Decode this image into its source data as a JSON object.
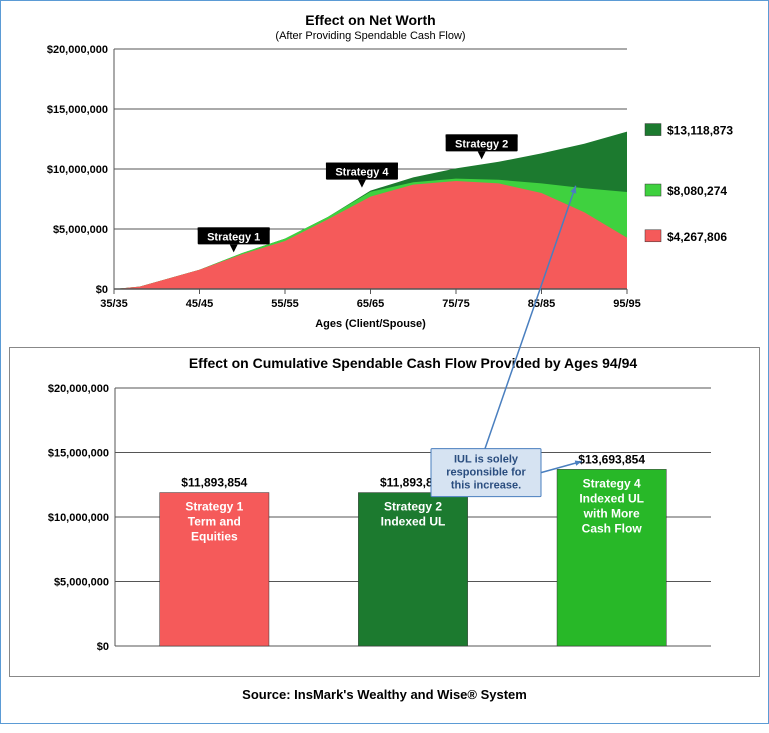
{
  "footer": "Source: InsMark's Wealthy and Wise® System",
  "outer_border_color": "#5b9bd5",
  "top_chart": {
    "type": "area",
    "title": "Effect on Net Worth",
    "subtitle": "(After Providing Spendable Cash Flow)",
    "xlabel": "Ages (Client/Spouse)",
    "x_ticks": [
      "35/35",
      "45/45",
      "55/55",
      "65/65",
      "75/75",
      "85/85",
      "95/95"
    ],
    "y_ticks": [
      "$0",
      "$5,000,000",
      "$10,000,000",
      "$15,000,000",
      "$20,000,000"
    ],
    "ylim": [
      0,
      20000000
    ],
    "xlim": [
      35,
      95
    ],
    "grid_color": "#555555",
    "background": "#ffffff",
    "axis_fontsize": 11,
    "series": [
      {
        "name": "Strategy 2",
        "color": "#1c7a2f",
        "points": [
          [
            35,
            0
          ],
          [
            38,
            200000
          ],
          [
            45,
            1600000
          ],
          [
            50,
            3000000
          ],
          [
            55,
            4200000
          ],
          [
            60,
            6000000
          ],
          [
            65,
            8200000
          ],
          [
            70,
            9300000
          ],
          [
            75,
            10050000
          ],
          [
            80,
            10600000
          ],
          [
            85,
            11300000
          ],
          [
            90,
            12100000
          ],
          [
            95,
            13118873
          ]
        ],
        "legend_value": "$13,118,873",
        "tag": {
          "label": "Strategy 2",
          "x": 78,
          "y": 10800000
        }
      },
      {
        "name": "Strategy 4",
        "color": "#3fd13f",
        "points": [
          [
            35,
            0
          ],
          [
            38,
            200000
          ],
          [
            45,
            1600000
          ],
          [
            50,
            3000000
          ],
          [
            55,
            4200000
          ],
          [
            60,
            6000000
          ],
          [
            65,
            8100000
          ],
          [
            70,
            8900000
          ],
          [
            75,
            9200000
          ],
          [
            80,
            9100000
          ],
          [
            85,
            8800000
          ],
          [
            90,
            8400000
          ],
          [
            95,
            8080274
          ]
        ],
        "legend_value": "$8,080,274",
        "tag": {
          "label": "Strategy 4",
          "x": 64,
          "y": 8450000
        }
      },
      {
        "name": "Strategy 1",
        "color": "#f55a5a",
        "points": [
          [
            35,
            0
          ],
          [
            38,
            200000
          ],
          [
            45,
            1600000
          ],
          [
            50,
            2900000
          ],
          [
            55,
            4000000
          ],
          [
            60,
            5800000
          ],
          [
            65,
            7700000
          ],
          [
            70,
            8700000
          ],
          [
            75,
            9000000
          ],
          [
            80,
            8800000
          ],
          [
            85,
            8000000
          ],
          [
            90,
            6400000
          ],
          [
            95,
            4267806
          ]
        ],
        "legend_value": "$4,267,806",
        "tag": {
          "label": "Strategy 1",
          "x": 49,
          "y": 3050000
        }
      }
    ],
    "arrow_to_strategy4": {
      "from_bottom": true
    }
  },
  "bottom_chart": {
    "type": "bar",
    "title": "Effect on Cumulative Spendable Cash Flow Provided by Ages 94/94",
    "ylim": [
      0,
      20000000
    ],
    "y_ticks": [
      "$0",
      "$5,000,000",
      "$10,000,000",
      "$15,000,000",
      "$20,000,000"
    ],
    "grid_color": "#555555",
    "background": "#ffffff",
    "bar_width": 0.55,
    "bars": [
      {
        "value": 11893854,
        "value_label": "$11,893,854",
        "color": "#f55a5a",
        "lines": [
          "Strategy 1",
          "Term and",
          "Equities"
        ]
      },
      {
        "value": 11893854,
        "value_label": "$11,893,854",
        "color": "#1c7a2f",
        "lines": [
          "Strategy 2",
          "Indexed UL"
        ]
      },
      {
        "value": 13693854,
        "value_label": "$13,693,854",
        "color": "#28b828",
        "lines": [
          "Strategy 4",
          "Indexed UL",
          "with More",
          "Cash Flow"
        ]
      }
    ],
    "callout": {
      "lines": [
        "IUL is solely",
        "responsible for",
        "this increase."
      ],
      "box_fill": "#d6e3f2",
      "box_stroke": "#4a7fbf"
    }
  }
}
